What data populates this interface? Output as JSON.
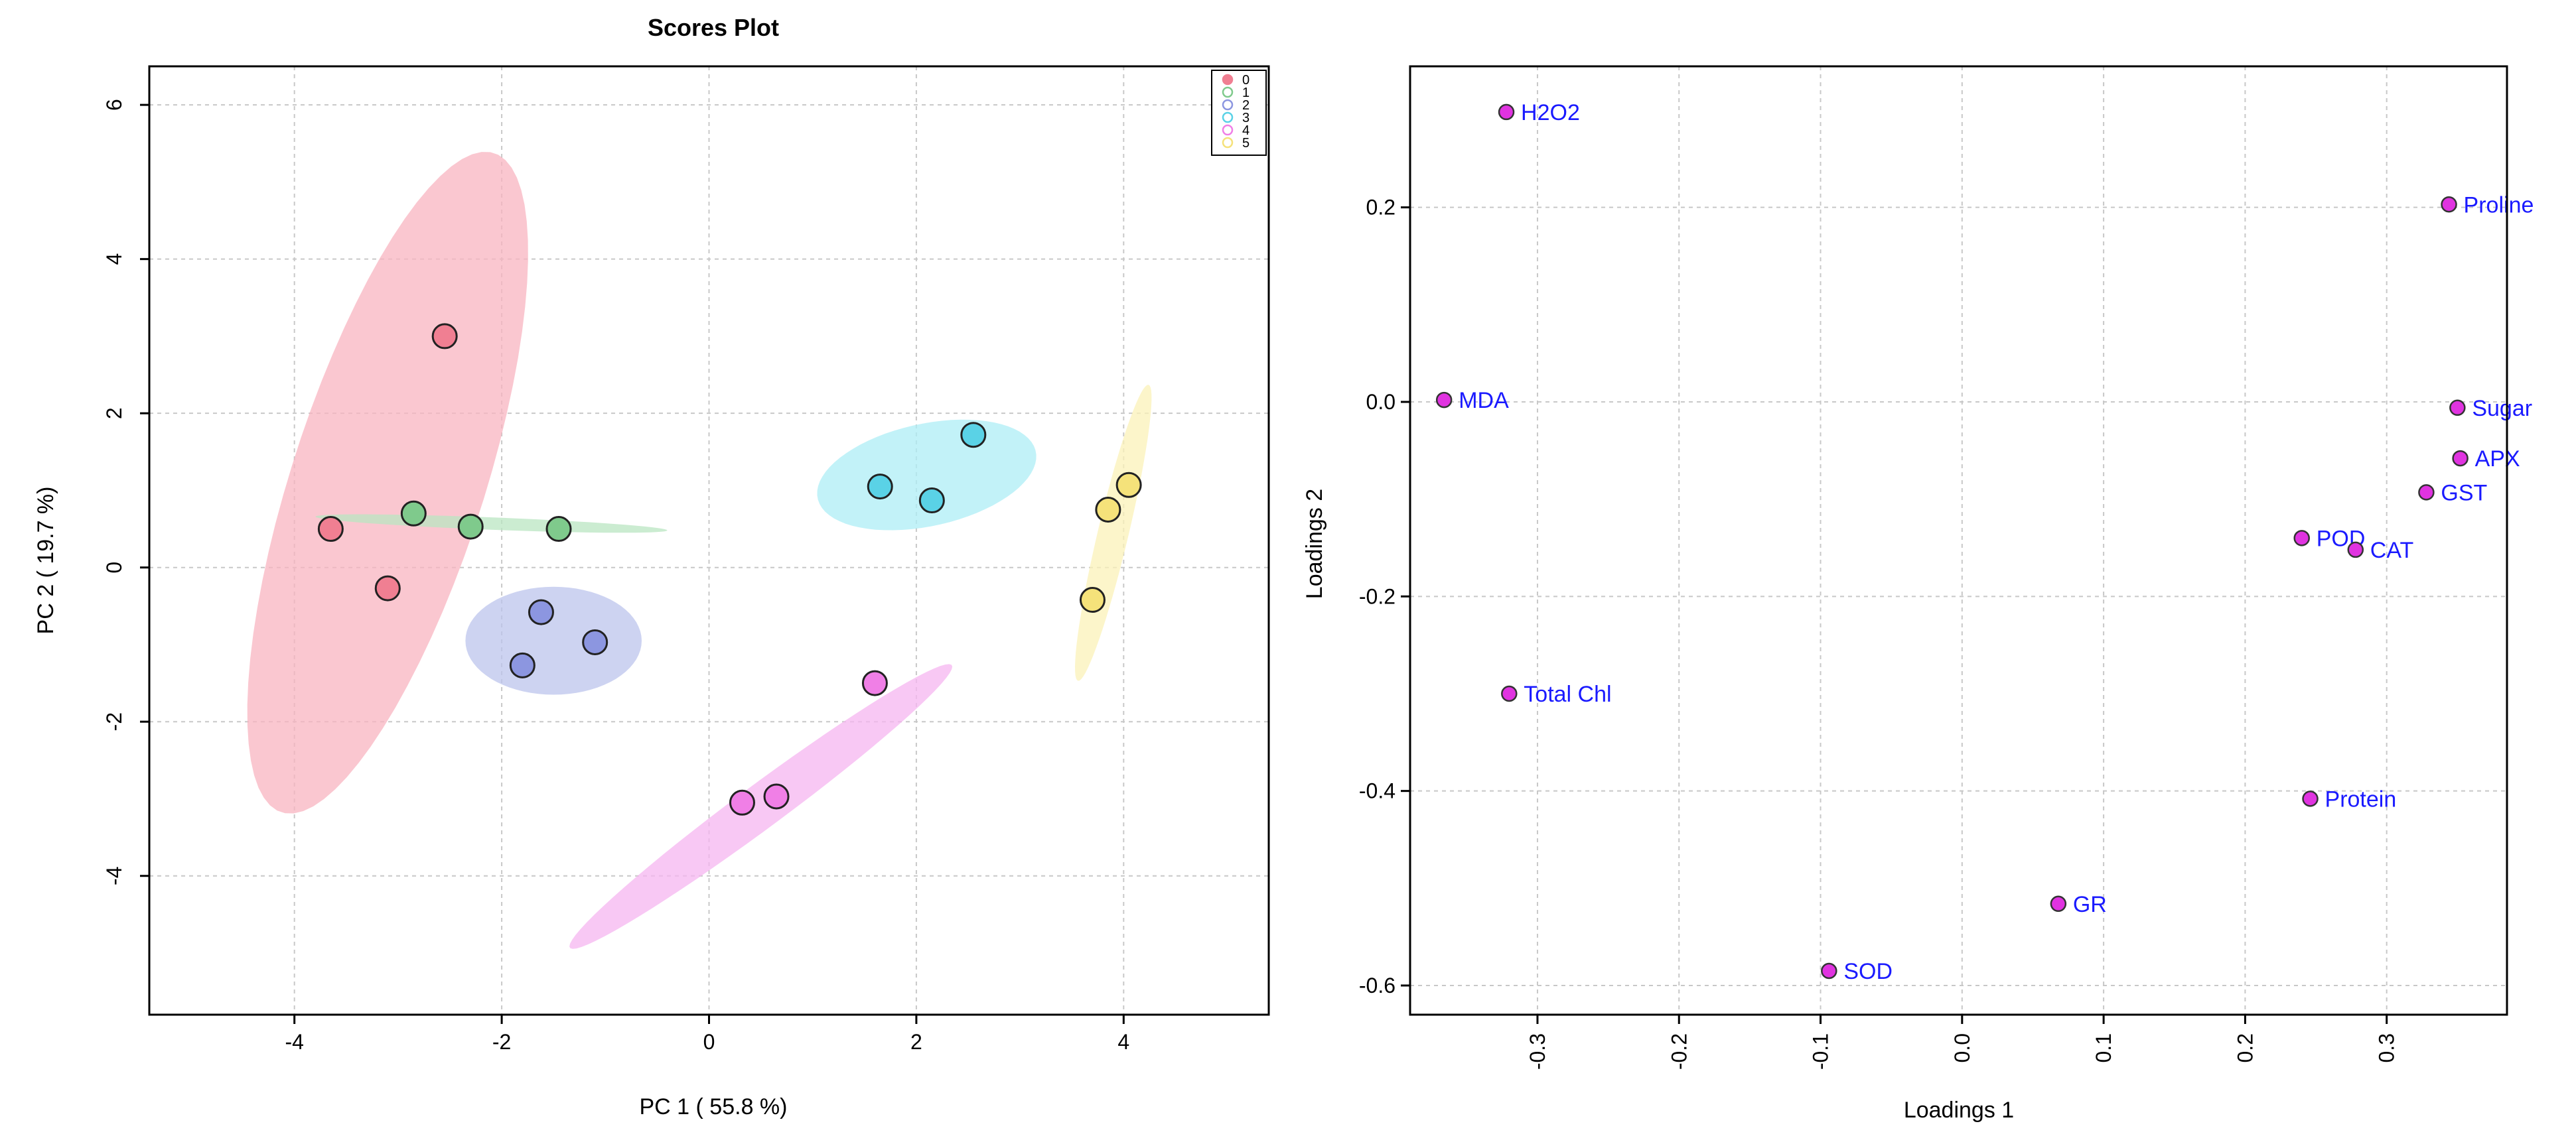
{
  "chart_data": [
    {
      "type": "scatter",
      "title": "Scores Plot",
      "xlabel": "PC 1 ( 55.8 %)",
      "ylabel": "PC 2 ( 19.7 %)",
      "xlim": [
        -5.4,
        5.4
      ],
      "ylim": [
        -5.8,
        6.5
      ],
      "xticks": [
        -4,
        -2,
        0,
        2,
        4
      ],
      "yticks": [
        -4,
        -2,
        0,
        2,
        4,
        6
      ],
      "grid": true,
      "legend_position": "top-right",
      "series": [
        {
          "name": "0",
          "color": "#f07f92",
          "fill": "#f8b4c0",
          "points": [
            [
              -2.55,
              3.0
            ],
            [
              -3.65,
              0.5
            ],
            [
              -3.1,
              -0.27
            ]
          ]
        },
        {
          "name": "1",
          "color": "#7fca8c",
          "fill": "#b9e6c1",
          "points": [
            [
              -2.85,
              0.7
            ],
            [
              -2.3,
              0.53
            ],
            [
              -1.45,
              0.5
            ]
          ]
        },
        {
          "name": "2",
          "color": "#8c96e0",
          "fill": "#bcc4ec",
          "points": [
            [
              -1.62,
              -0.58
            ],
            [
              -1.1,
              -0.97
            ],
            [
              -1.8,
              -1.27
            ]
          ]
        },
        {
          "name": "3",
          "color": "#5ad2e6",
          "fill": "#aeeef6",
          "points": [
            [
              2.55,
              1.72
            ],
            [
              1.65,
              1.05
            ],
            [
              2.15,
              0.87
            ]
          ]
        },
        {
          "name": "4",
          "color": "#f07fe6",
          "fill": "#f6b6f0",
          "points": [
            [
              1.6,
              -1.5
            ],
            [
              0.65,
              -2.97
            ],
            [
              0.32,
              -3.05
            ]
          ]
        },
        {
          "name": "5",
          "color": "#f5e27a",
          "fill": "#fbf1b8",
          "points": [
            [
              4.05,
              1.07
            ],
            [
              3.85,
              0.75
            ],
            [
              3.7,
              -0.42
            ]
          ]
        }
      ],
      "ellipses": [
        {
          "series": "0",
          "center": [
            -3.1,
            1.1
          ],
          "semi_major": 4.4,
          "semi_minor": 0.95,
          "angle_deg": 77
        },
        {
          "series": "1",
          "center": [
            -2.1,
            0.57
          ],
          "semi_major": 1.7,
          "semi_minor": 0.08,
          "angle_deg": -3
        },
        {
          "series": "2",
          "center": [
            -1.5,
            -0.95
          ],
          "semi_major": 0.85,
          "semi_minor": 0.7,
          "angle_deg": 0
        },
        {
          "series": "3",
          "center": [
            2.1,
            1.2
          ],
          "semi_major": 1.1,
          "semi_minor": 0.65,
          "angle_deg": 20
        },
        {
          "series": "4",
          "center": [
            0.5,
            -3.1
          ],
          "semi_major": 2.6,
          "semi_minor": 0.25,
          "angle_deg": 45
        },
        {
          "series": "5",
          "center": [
            3.9,
            0.45
          ],
          "semi_major": 1.95,
          "semi_minor": 0.15,
          "angle_deg": 80
        }
      ]
    },
    {
      "type": "scatter",
      "title": "",
      "xlabel": "Loadings 1",
      "ylabel": "Loadings 2",
      "xlim": [
        -0.39,
        0.385
      ],
      "ylim": [
        -0.63,
        0.345
      ],
      "xticks": [
        -0.3,
        -0.2,
        -0.1,
        0.0,
        0.1,
        0.2,
        0.3
      ],
      "xtick_labels": [
        "-0.3",
        "-0.2",
        "-0.1",
        "0.0",
        "0.1",
        "0.2",
        "0.3"
      ],
      "yticks": [
        -0.6,
        -0.4,
        -0.2,
        0.0,
        0.2
      ],
      "ytick_labels": [
        "-0.6",
        "-0.4",
        "-0.2",
        "0.0",
        "0.2"
      ],
      "grid": true,
      "point_color": "#e033e0",
      "label_color": "#1a1aff",
      "points": [
        {
          "label": "H2O2",
          "x": -0.322,
          "y": 0.298
        },
        {
          "label": "Proline",
          "x": 0.344,
          "y": 0.203
        },
        {
          "label": "MDA",
          "x": -0.366,
          "y": 0.002
        },
        {
          "label": "Sugar",
          "x": 0.35,
          "y": -0.006
        },
        {
          "label": "APX",
          "x": 0.352,
          "y": -0.058
        },
        {
          "label": "GST",
          "x": 0.328,
          "y": -0.093
        },
        {
          "label": "POD",
          "x": 0.24,
          "y": -0.14
        },
        {
          "label": "CAT",
          "x": 0.278,
          "y": -0.152
        },
        {
          "label": "Total Chl",
          "x": -0.32,
          "y": -0.3
        },
        {
          "label": "Protein",
          "x": 0.246,
          "y": -0.408
        },
        {
          "label": "GR",
          "x": 0.068,
          "y": -0.516
        },
        {
          "label": "SOD",
          "x": -0.094,
          "y": -0.585
        }
      ]
    }
  ]
}
